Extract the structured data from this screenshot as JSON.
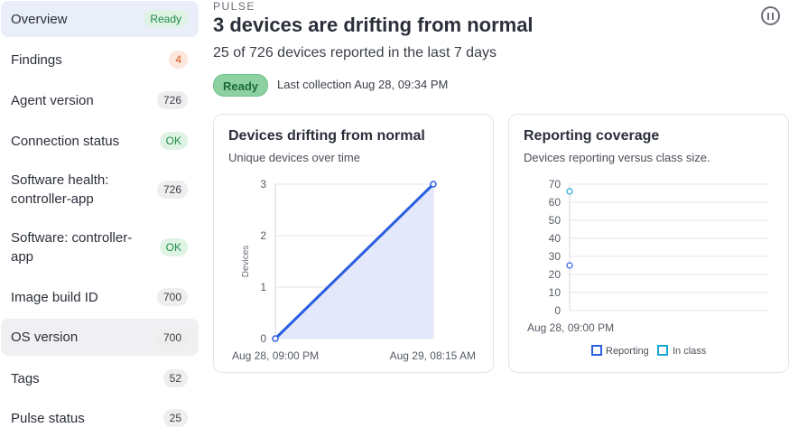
{
  "sidebar": {
    "items": [
      {
        "label": "Overview",
        "badge": "Ready",
        "badge_style": "green"
      },
      {
        "label": "Findings",
        "badge": "4",
        "badge_style": "orange"
      },
      {
        "label": "Agent version",
        "badge": "726",
        "badge_style": "gray"
      },
      {
        "label": "Connection status",
        "badge": "OK",
        "badge_style": "green"
      },
      {
        "label": "Software health: controller-app",
        "badge": "726",
        "badge_style": "gray"
      },
      {
        "label": "Software: controller-app",
        "badge": "OK",
        "badge_style": "green"
      },
      {
        "label": "Image build ID",
        "badge": "700",
        "badge_style": "gray"
      },
      {
        "label": "OS version",
        "badge": "700",
        "badge_style": "gray"
      },
      {
        "label": "Tags",
        "badge": "52",
        "badge_style": "gray"
      },
      {
        "label": "Pulse status",
        "badge": "25",
        "badge_style": "gray"
      }
    ]
  },
  "header": {
    "eyebrow": "PULSE",
    "title": "3 devices are drifting from normal",
    "subtitle": "25 of 726 devices reported in the last 7 days",
    "status": "Ready",
    "last_collection": "Last collection Aug 28, 09:34 PM"
  },
  "cards": {
    "drift": {
      "title": "Devices drifting from normal",
      "subtitle": "Unique devices over time"
    },
    "coverage": {
      "title": "Reporting coverage",
      "subtitle": "Devices reporting versus class size."
    }
  },
  "colors": {
    "accent": "#2b5fe0",
    "area_fill": "#e3e9fb",
    "cyan": "#1aa7d6",
    "status_green": "#8dd0a1"
  },
  "chart_data": [
    {
      "type": "area",
      "x": [
        "Aug 28, 09:00 PM",
        "Aug 29, 08:15 AM"
      ],
      "series": [
        {
          "values": [
            0,
            3
          ]
        }
      ],
      "ylabel": "Devices",
      "xlabel": "",
      "ylim": [
        0,
        3
      ],
      "yticks": [
        0,
        1,
        2,
        3
      ],
      "grid": true
    },
    {
      "type": "scatter",
      "x": [
        "Aug 28, 09:00 PM"
      ],
      "series": [
        {
          "name": "Reporting",
          "values": [
            25
          ]
        },
        {
          "name": "In class",
          "values": [
            66
          ]
        }
      ],
      "ylim": [
        0,
        70
      ],
      "yticks": [
        0,
        10,
        20,
        30,
        40,
        50,
        60,
        70
      ],
      "legend": "bottom",
      "grid": true
    }
  ]
}
